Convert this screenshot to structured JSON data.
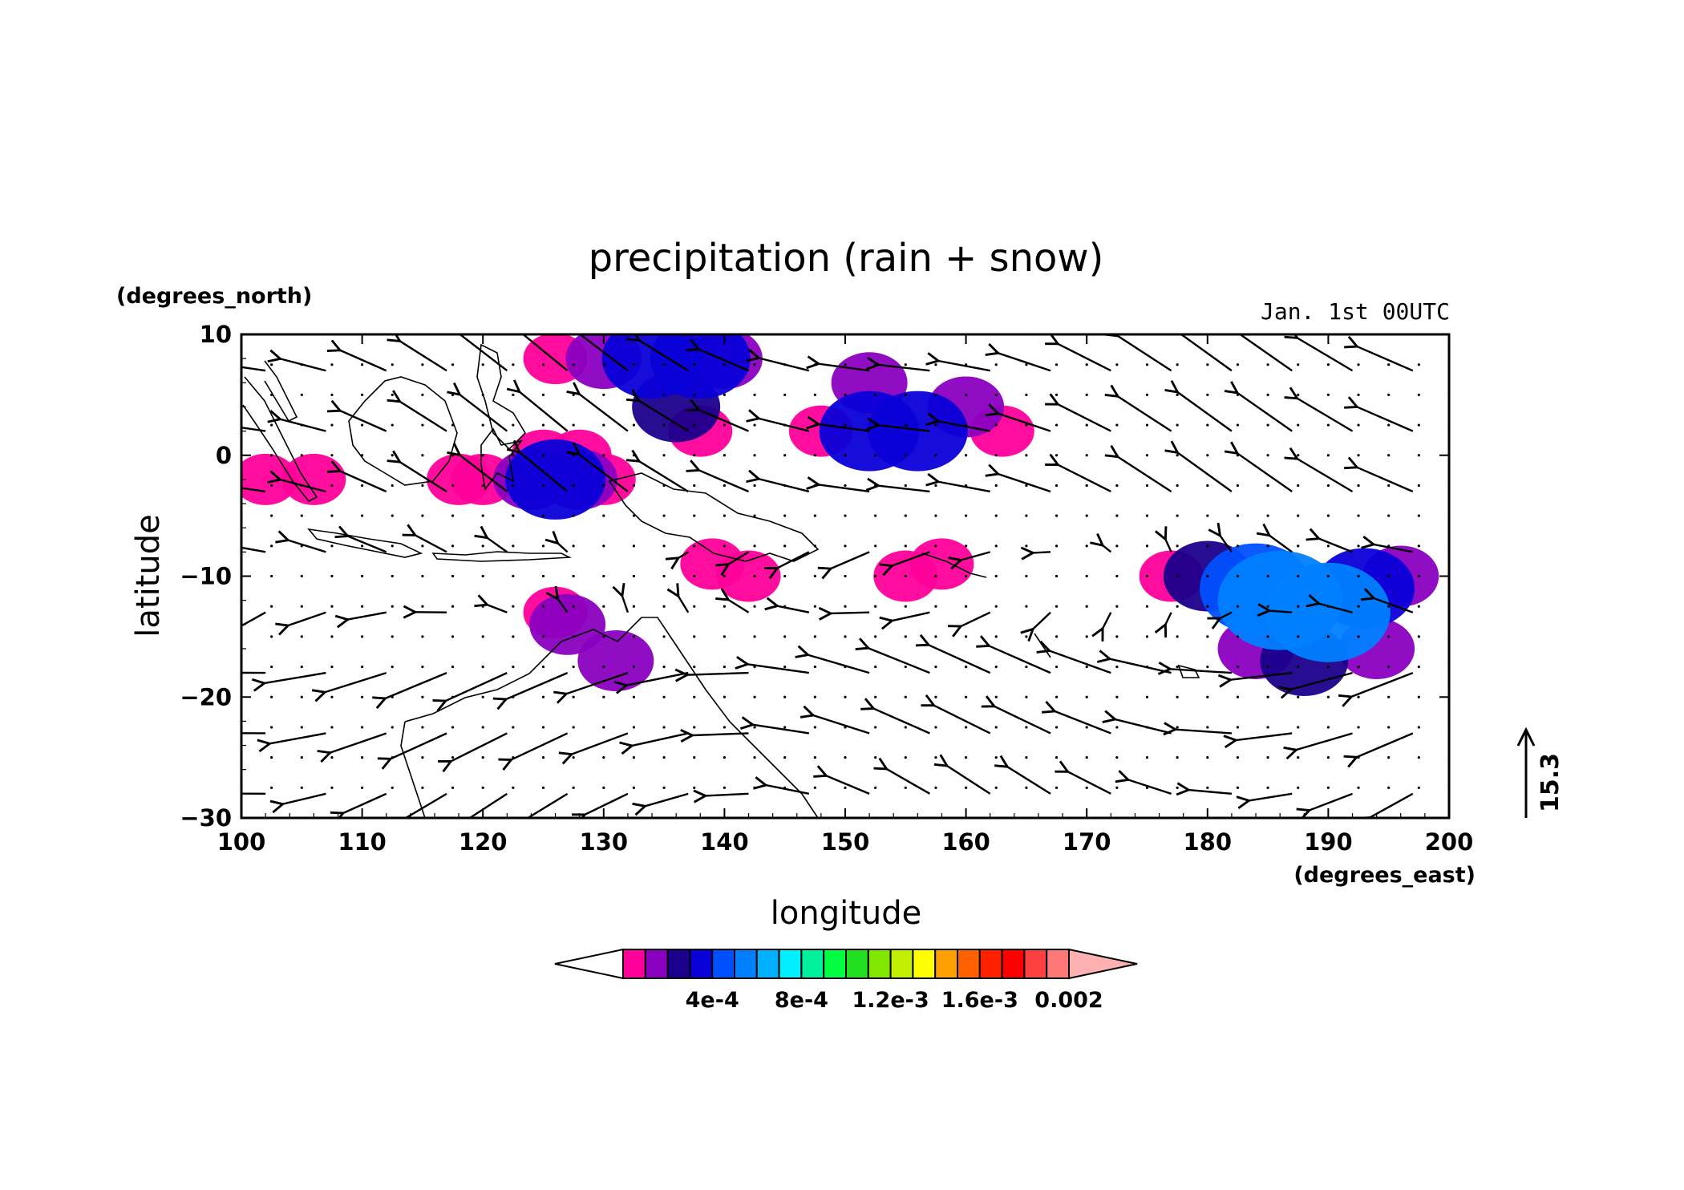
{
  "chart_data": {
    "type": "heatmap",
    "title": "precipitation (rain + snow)",
    "annotation": "Jan. 1st 00UTC",
    "xlabel": "longitude",
    "ylabel": "latitude",
    "xunit": "(degrees_east)",
    "yunit": "(degrees_north)",
    "xlim": [
      100,
      200
    ],
    "ylim": [
      -30,
      10
    ],
    "xticks": [
      100,
      110,
      120,
      130,
      140,
      150,
      160,
      170,
      180,
      190,
      200
    ],
    "yticks": [
      -30,
      -20,
      -10,
      0,
      10
    ],
    "grid": false,
    "overlay": "wind vectors (quiver) with coastlines",
    "reference_vector": {
      "value": "15.3",
      "u": 0,
      "v": 15.3
    },
    "colorbar": {
      "levels": [
        0.0001,
        0.0002,
        0.0003,
        0.0004,
        0.0005,
        0.0006,
        0.0007,
        0.0008,
        0.0009,
        0.001,
        0.0011,
        0.0012,
        0.0013,
        0.0014,
        0.0015,
        0.0016,
        0.0017,
        0.0018,
        0.0019,
        0.002
      ],
      "colors": [
        "#ffffff",
        "#ff009a",
        "#8a00c0",
        "#1a008c",
        "#0a00d8",
        "#0050ff",
        "#0080ff",
        "#00b0ff",
        "#00f0ff",
        "#00f09c",
        "#00ff40",
        "#20e020",
        "#80e800",
        "#c0f000",
        "#ffff00",
        "#ffa000",
        "#ff6000",
        "#ff2000",
        "#ff0000",
        "#ff4040",
        "#ff7878",
        "#ffb0b0"
      ],
      "tick_labels": [
        {
          "value": 0.0004,
          "label": "4e-4"
        },
        {
          "value": 0.0008,
          "label": "8e-4"
        },
        {
          "value": 0.0012,
          "label": "1.2e-3"
        },
        {
          "value": 0.0016,
          "label": "1.6e-3"
        },
        {
          "value": 0.002,
          "label": "0.002"
        }
      ]
    },
    "precip_cells": [
      {
        "lon": 102,
        "lat": -2,
        "value": 0.0001
      },
      {
        "lon": 106,
        "lat": -2,
        "value": 0.0001
      },
      {
        "lon": 118,
        "lat": -2,
        "value": 0.0001
      },
      {
        "lon": 120,
        "lat": -2,
        "value": 0.0001
      },
      {
        "lon": 124,
        "lat": -2,
        "value": 0.0002
      },
      {
        "lon": 126,
        "lat": -2,
        "value": 0.0004
      },
      {
        "lon": 128,
        "lat": -2,
        "value": 0.0002
      },
      {
        "lon": 130,
        "lat": -2,
        "value": 0.0001
      },
      {
        "lon": 125,
        "lat": 0,
        "value": 0.0001
      },
      {
        "lon": 128,
        "lat": 0,
        "value": 0.0001
      },
      {
        "lon": 126,
        "lat": 8,
        "value": 0.0001
      },
      {
        "lon": 130,
        "lat": 8,
        "value": 0.0002
      },
      {
        "lon": 134,
        "lat": 8,
        "value": 0.0004
      },
      {
        "lon": 138,
        "lat": 8,
        "value": 0.0004
      },
      {
        "lon": 140,
        "lat": 8,
        "value": 0.0002
      },
      {
        "lon": 136,
        "lat": 4,
        "value": 0.0003
      },
      {
        "lon": 138,
        "lat": 2,
        "value": 0.0001
      },
      {
        "lon": 152,
        "lat": 6,
        "value": 0.0002
      },
      {
        "lon": 152,
        "lat": 2,
        "value": 0.0004
      },
      {
        "lon": 156,
        "lat": 2,
        "value": 0.0004
      },
      {
        "lon": 160,
        "lat": 4,
        "value": 0.0002
      },
      {
        "lon": 148,
        "lat": 2,
        "value": 0.0001
      },
      {
        "lon": 163,
        "lat": 2,
        "value": 0.0001
      },
      {
        "lon": 139,
        "lat": -9,
        "value": 0.0001
      },
      {
        "lon": 142,
        "lat": -10,
        "value": 0.0001
      },
      {
        "lon": 155,
        "lat": -10,
        "value": 0.0001
      },
      {
        "lon": 158,
        "lat": -9,
        "value": 0.0001
      },
      {
        "lon": 126,
        "lat": -13,
        "value": 0.0001
      },
      {
        "lon": 127,
        "lat": -14,
        "value": 0.0002
      },
      {
        "lon": 131,
        "lat": -17,
        "value": 0.0002
      },
      {
        "lon": 177,
        "lat": -10,
        "value": 0.0001
      },
      {
        "lon": 180,
        "lat": -10,
        "value": 0.0003
      },
      {
        "lon": 184,
        "lat": -11,
        "value": 0.0005
      },
      {
        "lon": 186,
        "lat": -12,
        "value": 0.0006
      },
      {
        "lon": 190,
        "lat": -13,
        "value": 0.0006
      },
      {
        "lon": 193,
        "lat": -11,
        "value": 0.0004
      },
      {
        "lon": 196,
        "lat": -10,
        "value": 0.0002
      },
      {
        "lon": 188,
        "lat": -17,
        "value": 0.0003
      },
      {
        "lon": 194,
        "lat": -16,
        "value": 0.0002
      },
      {
        "lon": 184,
        "lat": -16,
        "value": 0.0002
      }
    ]
  }
}
